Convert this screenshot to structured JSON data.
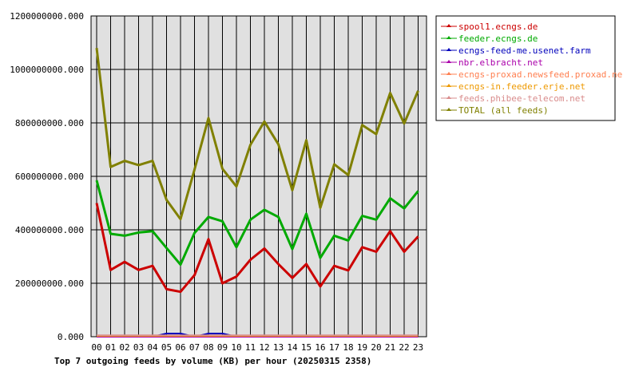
{
  "chart_data": {
    "type": "line",
    "title": "Top 7 outgoing feeds by volume (KB) per hour (20250315 2358)",
    "xlabel": "",
    "ylabel": "",
    "ylim": [
      0,
      1200000000
    ],
    "y_ticks": [
      "0.000",
      "200000000.000",
      "400000000.000",
      "600000000.000",
      "800000000.000",
      "1000000000.000",
      "1200000000.000"
    ],
    "categories": [
      "00",
      "01",
      "02",
      "03",
      "04",
      "05",
      "06",
      "07",
      "08",
      "09",
      "10",
      "11",
      "12",
      "13",
      "14",
      "15",
      "16",
      "17",
      "18",
      "19",
      "20",
      "21",
      "22",
      "23"
    ],
    "grid": true,
    "legend_position": "right",
    "colors": {
      "plot_background": "#e0e0e0",
      "grid": "#000000"
    },
    "series": [
      {
        "name": "spool1.ecngs.de",
        "color": "#cc0000",
        "values": [
          500000000,
          250000000,
          280000000,
          250000000,
          265000000,
          178000000,
          168000000,
          230000000,
          365000000,
          200000000,
          225000000,
          288000000,
          330000000,
          272000000,
          220000000,
          272000000,
          188000000,
          265000000,
          248000000,
          335000000,
          318000000,
          395000000,
          318000000,
          375000000
        ]
      },
      {
        "name": "feeder.ecngs.de",
        "color": "#00aa00",
        "values": [
          585000000,
          385000000,
          378000000,
          390000000,
          395000000,
          332000000,
          270000000,
          388000000,
          448000000,
          432000000,
          335000000,
          438000000,
          475000000,
          448000000,
          328000000,
          460000000,
          295000000,
          378000000,
          360000000,
          452000000,
          438000000,
          518000000,
          480000000,
          545000000
        ]
      },
      {
        "name": "ecngs-feed-me.usenet.farm",
        "color": "#0000bb",
        "values": [
          0,
          0,
          0,
          0,
          0,
          12000000,
          12000000,
          0,
          12000000,
          12000000,
          0,
          0,
          0,
          0,
          0,
          0,
          0,
          0,
          0,
          0,
          0,
          0,
          0,
          0
        ]
      },
      {
        "name": "nbr.elbracht.net",
        "color": "#aa00aa",
        "values": [
          0,
          0,
          0,
          0,
          0,
          0,
          0,
          0,
          0,
          0,
          0,
          0,
          0,
          0,
          0,
          0,
          0,
          0,
          0,
          0,
          0,
          0,
          0,
          0
        ]
      },
      {
        "name": "ecngs-proxad.newsfeed.proxad.net",
        "color": "#ff7f50",
        "values": [
          4000000,
          4000000,
          4000000,
          4000000,
          4000000,
          4000000,
          4000000,
          4000000,
          4000000,
          4000000,
          4000000,
          4000000,
          4000000,
          4000000,
          4000000,
          4000000,
          4000000,
          4000000,
          4000000,
          4000000,
          4000000,
          4000000,
          4000000,
          4000000
        ]
      },
      {
        "name": "ecngs-in.feeder.erje.net",
        "color": "#ee9900",
        "values": [
          3000000,
          3000000,
          3000000,
          3000000,
          3000000,
          3000000,
          3000000,
          3000000,
          3000000,
          3000000,
          3000000,
          3000000,
          3000000,
          3000000,
          3000000,
          3000000,
          3000000,
          3000000,
          3000000,
          3000000,
          3000000,
          3000000,
          3000000,
          3000000
        ]
      },
      {
        "name": "feeds.phibee-telecom.net",
        "color": "#d98c8c",
        "values": [
          5000000,
          5000000,
          5000000,
          5000000,
          5000000,
          5000000,
          5000000,
          5000000,
          5000000,
          5000000,
          5000000,
          5000000,
          5000000,
          5000000,
          5000000,
          5000000,
          5000000,
          5000000,
          5000000,
          5000000,
          5000000,
          5000000,
          5000000,
          5000000
        ]
      },
      {
        "name": "TOTAL (all feeds)",
        "color": "#808000",
        "values": [
          1080000000,
          635000000,
          658000000,
          642000000,
          658000000,
          512000000,
          440000000,
          625000000,
          818000000,
          628000000,
          562000000,
          718000000,
          805000000,
          720000000,
          548000000,
          735000000,
          482000000,
          645000000,
          605000000,
          792000000,
          758000000,
          912000000,
          798000000,
          920000000
        ]
      }
    ]
  }
}
